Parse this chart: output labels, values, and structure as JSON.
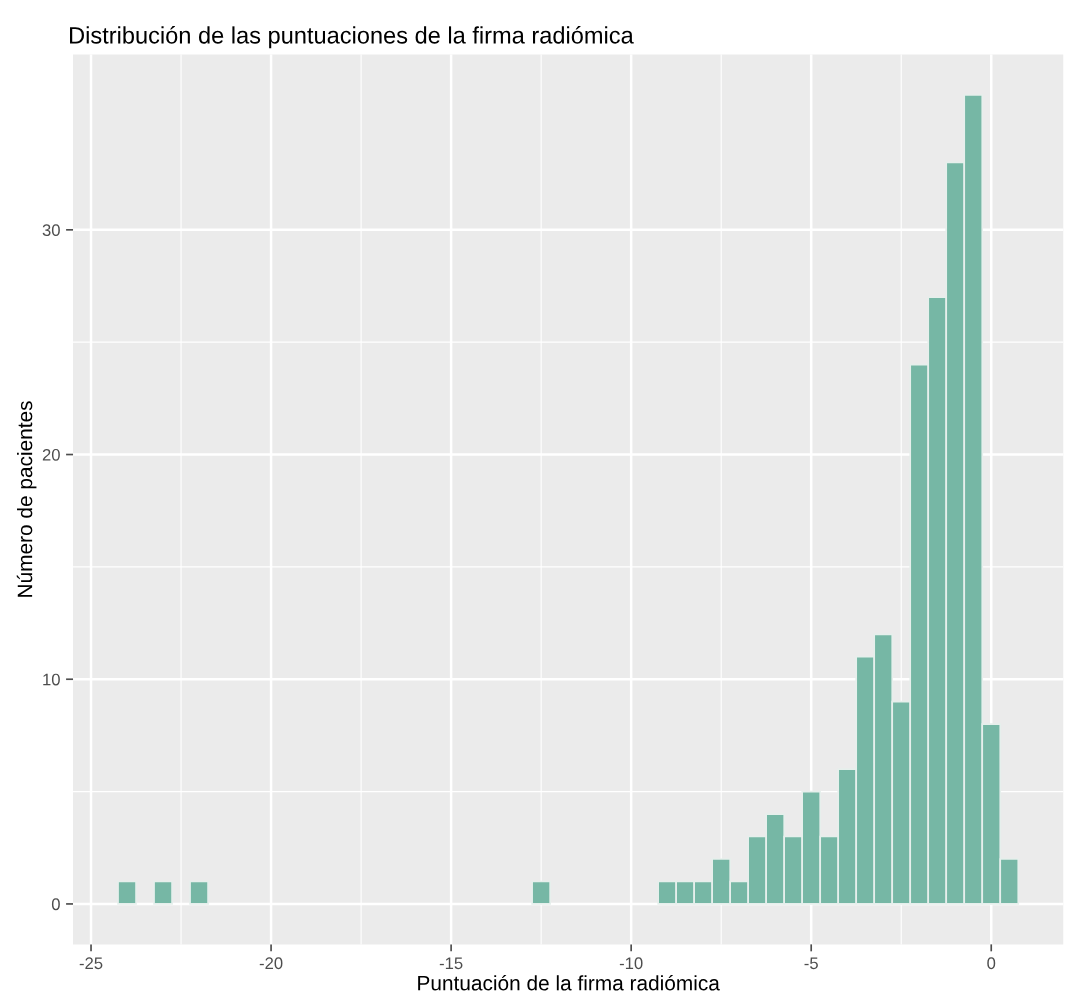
{
  "chart_data": {
    "type": "histogram",
    "title": "Distribución de las puntuaciones de la firma radiómica",
    "xlabel": "Puntuación de la firma radiómica",
    "ylabel": "Número de pacientes",
    "bins": [
      -24.25,
      -23.75,
      -23.25,
      -22.75,
      -22.25,
      -21.75,
      -21.25,
      -20.75,
      -20.25,
      -19.75,
      -19.25,
      -18.75,
      -18.25,
      -17.75,
      -17.25,
      -16.75,
      -16.25,
      -15.75,
      -15.25,
      -14.75,
      -14.25,
      -13.75,
      -13.25,
      -12.75,
      -12.25,
      -11.75,
      -11.25,
      -10.75,
      -10.25,
      -9.75,
      -9.25,
      -8.75,
      -8.25,
      -7.75,
      -7.25,
      -6.75,
      -6.25,
      -5.75,
      -5.25,
      -4.75,
      -4.25,
      -3.75,
      -3.25,
      -2.75,
      -2.25,
      -1.75,
      -1.25,
      -0.75,
      -0.25,
      0.25,
      0.75
    ],
    "values": [
      1,
      0,
      1,
      0,
      1,
      0,
      0,
      0,
      0,
      0,
      0,
      0,
      0,
      0,
      0,
      0,
      0,
      0,
      0,
      0,
      0,
      0,
      0,
      1,
      0,
      0,
      0,
      0,
      0,
      0,
      1,
      1,
      1,
      2,
      1,
      3,
      4,
      3,
      5,
      3,
      6,
      11,
      12,
      9,
      24,
      27,
      33,
      36,
      8,
      2
    ],
    "color": "#76b7a5",
    "xlim": [
      -25.5,
      2.0
    ],
    "ylim": [
      -1.8,
      37.8
    ],
    "xticks": [
      -25,
      -20,
      -15,
      -10,
      -5,
      0
    ],
    "yticks": [
      0,
      10,
      20,
      30
    ],
    "grid": true
  }
}
